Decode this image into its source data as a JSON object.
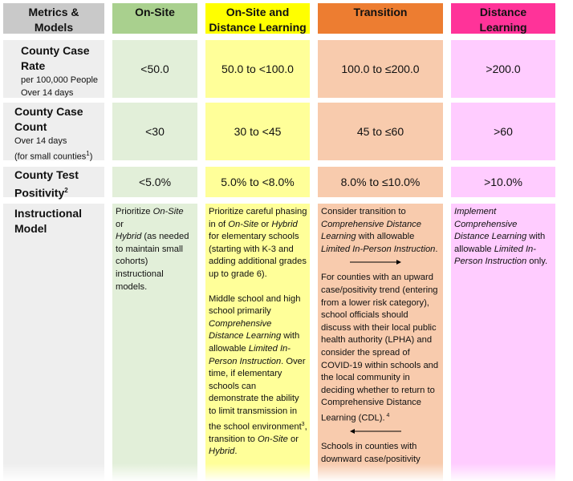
{
  "colors": {
    "metrics_header": "#c9c9c9",
    "metrics_body": "#eeeeee",
    "onsite_header": "#a9d08e",
    "onsite_body": "#e2efd9",
    "hybrid_header": "#ffff00",
    "hybrid_body": "#ffff99",
    "transition_header": "#ed7d31",
    "transition_body": "#f8cbad",
    "distance_header": "#ff3399",
    "distance_body": "#ffccff"
  },
  "headers": {
    "metrics": [
      "Metrics &",
      "Models"
    ],
    "onsite": [
      "On-Site"
    ],
    "hybrid": [
      "On-Site and",
      "Distance Learning"
    ],
    "transition": [
      "Transition"
    ],
    "distance": [
      "Distance",
      "Learning"
    ]
  },
  "rows": {
    "case_rate": {
      "title": [
        "County Case",
        "Rate"
      ],
      "subtitle": [
        "per 100,000 People",
        "Over 14 days"
      ],
      "values": [
        "<50.0",
        "50.0 to <100.0",
        "100.0 to ≤200.0",
        ">200.0"
      ]
    },
    "case_count": {
      "title": [
        "County Case",
        "Count"
      ],
      "subtitle": [
        "Over 14 days",
        "(for small counties"
      ],
      "subtitle_sup": "1",
      "subtitle_end": ")",
      "values": [
        "<30",
        "30 to <45",
        "45 to ≤60",
        ">60"
      ]
    },
    "positivity": {
      "title": [
        "County Test",
        "Positivity"
      ],
      "title_sup": "2",
      "values": [
        "<5.0%",
        "5.0% to <8.0%",
        "8.0% to ≤10.0%",
        ">10.0%"
      ]
    },
    "instructional": {
      "title": [
        "Instructional",
        "Model"
      ],
      "onsite": {
        "t1": "Prioritize ",
        "i1": "On-Site",
        "t2": " or ",
        "i2": "Hybrid",
        "t3": " (as needed to maintain small cohorts) instructional models."
      },
      "hybrid": {
        "p1": {
          "t1": "Prioritize careful phasing in of ",
          "i1": "On-Site",
          "t2": " or ",
          "i2": "Hybrid",
          "t3": " for elementary schools (starting with K-3 and adding additional grades up to grade 6)."
        },
        "p2": {
          "t1": "Middle school and high school primarily ",
          "i1": "Comprehensive Distance Learning",
          "t2": " with allowable ",
          "i2": "Limited In-Person Instruction",
          "t3": ". Over time, if elementary schools can demonstrate the ability to limit transmission in the school environment",
          "sup": "3",
          "t4": ", transition to ",
          "i3": "On-Site",
          "t5": " or ",
          "i4": "Hybrid",
          "t6": "."
        }
      },
      "transition": {
        "p1": {
          "t1": "Consider transition to ",
          "i1": "Comprehensive Distance Learning",
          "t2": " with allowable ",
          "i2": "Limited In-Person Instruction",
          "t3": "."
        },
        "p2": {
          "t1": "For counties with an upward case/positivity trend (entering from a lower risk category), school officials should discuss with their local public health authority (LPHA) and consider the spread of COVID-19 within schools and the local community in deciding whether to return to Comprehensive Distance Learning (CDL).",
          "sup": " 4"
        },
        "p3": {
          "t1": "Schools in counties with downward case/positivity"
        }
      },
      "distance": {
        "i1": "Implement Comprehensive Distance Learning",
        "t1": " with allowable ",
        "i2": "Limited In-Person Instruction",
        "t2": " only."
      }
    }
  }
}
